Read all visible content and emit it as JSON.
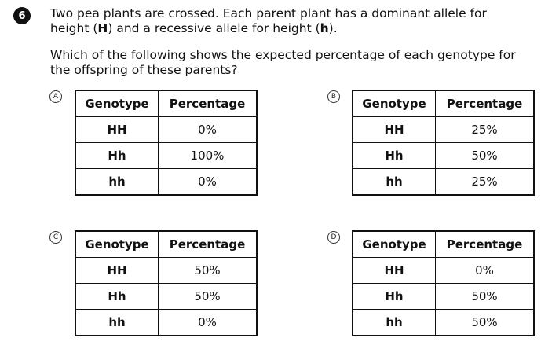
{
  "question": {
    "number": "6",
    "line1_pre": "Two pea plants are crossed. Each parent plant has a dominant allele for",
    "line2_a": "height (",
    "line2_b": "H",
    "line2_c": ") and a recessive allele for height (",
    "line2_d": "h",
    "line2_e": ").",
    "prompt_line1": "Which of the following shows the expected percentage of each genotype for",
    "prompt_line2": "the offspring of these parents?"
  },
  "options": [
    {
      "letter": "A",
      "headers": [
        "Genotype",
        "Percentage"
      ],
      "rows": [
        [
          "HH",
          "0%"
        ],
        [
          "Hh",
          "100%"
        ],
        [
          "hh",
          "0%"
        ]
      ]
    },
    {
      "letter": "B",
      "headers": [
        "Genotype",
        "Percentage"
      ],
      "rows": [
        [
          "HH",
          "25%"
        ],
        [
          "Hh",
          "50%"
        ],
        [
          "hh",
          "25%"
        ]
      ]
    },
    {
      "letter": "C",
      "headers": [
        "Genotype",
        "Percentage"
      ],
      "rows": [
        [
          "HH",
          "50%"
        ],
        [
          "Hh",
          "50%"
        ],
        [
          "hh",
          "0%"
        ]
      ]
    },
    {
      "letter": "D",
      "headers": [
        "Genotype",
        "Percentage"
      ],
      "rows": [
        [
          "HH",
          "0%"
        ],
        [
          "Hh",
          "50%"
        ],
        [
          "hh",
          "50%"
        ]
      ]
    }
  ]
}
